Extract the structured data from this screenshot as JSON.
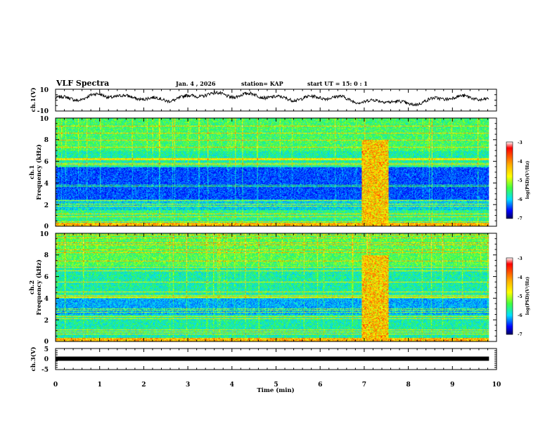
{
  "header": {
    "title": "VLF Spectra",
    "date": "Jan. 4 , 2026",
    "station": "station= KAP",
    "start": "start UT =  15: 0  : 1"
  },
  "chart_data": [
    {
      "type": "line",
      "panel": "ch1-time-series",
      "ylabel": "ch.1(V)",
      "ylim": [
        -10,
        10
      ],
      "ytick_labels": [
        "10",
        "-10"
      ],
      "xlim": [
        0,
        9.83
      ],
      "level_by_minute": {
        "x": [
          0,
          0.5,
          1,
          1.5,
          2,
          2.5,
          3,
          3.5,
          4,
          4.5,
          5,
          5.5,
          6,
          6.5,
          7,
          7.5,
          8,
          8.5,
          9,
          9.5,
          9.83
        ],
        "y": [
          2,
          1,
          5,
          3,
          2,
          0,
          3,
          6,
          4,
          5,
          2,
          1,
          3,
          2,
          -2,
          0,
          -4,
          0,
          3,
          2,
          1
        ]
      }
    },
    {
      "type": "heatmap",
      "panel": "ch1-spectrogram",
      "ylabel_line1": "ch.1",
      "ylabel_line2": "Frequency (kHz)",
      "ylim": [
        0,
        10
      ],
      "ytick_labels": [
        "10",
        "8",
        "6",
        "4",
        "2",
        "0"
      ],
      "xlim": [
        0,
        9.83
      ],
      "burst_minutes": [
        6.9,
        7.5
      ],
      "colorbar": {
        "range": [
          -7,
          -3
        ],
        "tick_labels": [
          "-3",
          "-4",
          "-5",
          "-6",
          "-7"
        ],
        "label": "log(PSD)(V²/Hz)"
      }
    },
    {
      "type": "heatmap",
      "panel": "ch2-spectrogram",
      "ylabel_line1": "ch.2",
      "ylabel_line2": "Frequency (kHz)",
      "ylim": [
        0,
        10
      ],
      "ytick_labels": [
        "10",
        "8",
        "6",
        "4",
        "2",
        "0"
      ],
      "xlim": [
        0,
        9.83
      ],
      "burst_minutes": [
        6.9,
        7.5
      ],
      "colorbar": {
        "range": [
          -7,
          -3
        ],
        "tick_labels": [
          "-3",
          "-4",
          "-5",
          "-6",
          "-7"
        ],
        "label": "log(PSD)(V²/Hz)"
      }
    },
    {
      "type": "line",
      "panel": "ch3-time-series",
      "ylabel": "ch.3(V)",
      "ylim": [
        -5,
        5
      ],
      "ytick_labels": [
        "5",
        "0",
        "-5"
      ],
      "xlim": [
        0,
        9.83
      ],
      "level": 0
    }
  ],
  "x_axis": {
    "label": "Time (min)",
    "range": [
      0,
      10
    ],
    "tick_labels": [
      "0",
      "1",
      "2",
      "3",
      "4",
      "5",
      "6",
      "7",
      "8",
      "9",
      "10"
    ]
  }
}
